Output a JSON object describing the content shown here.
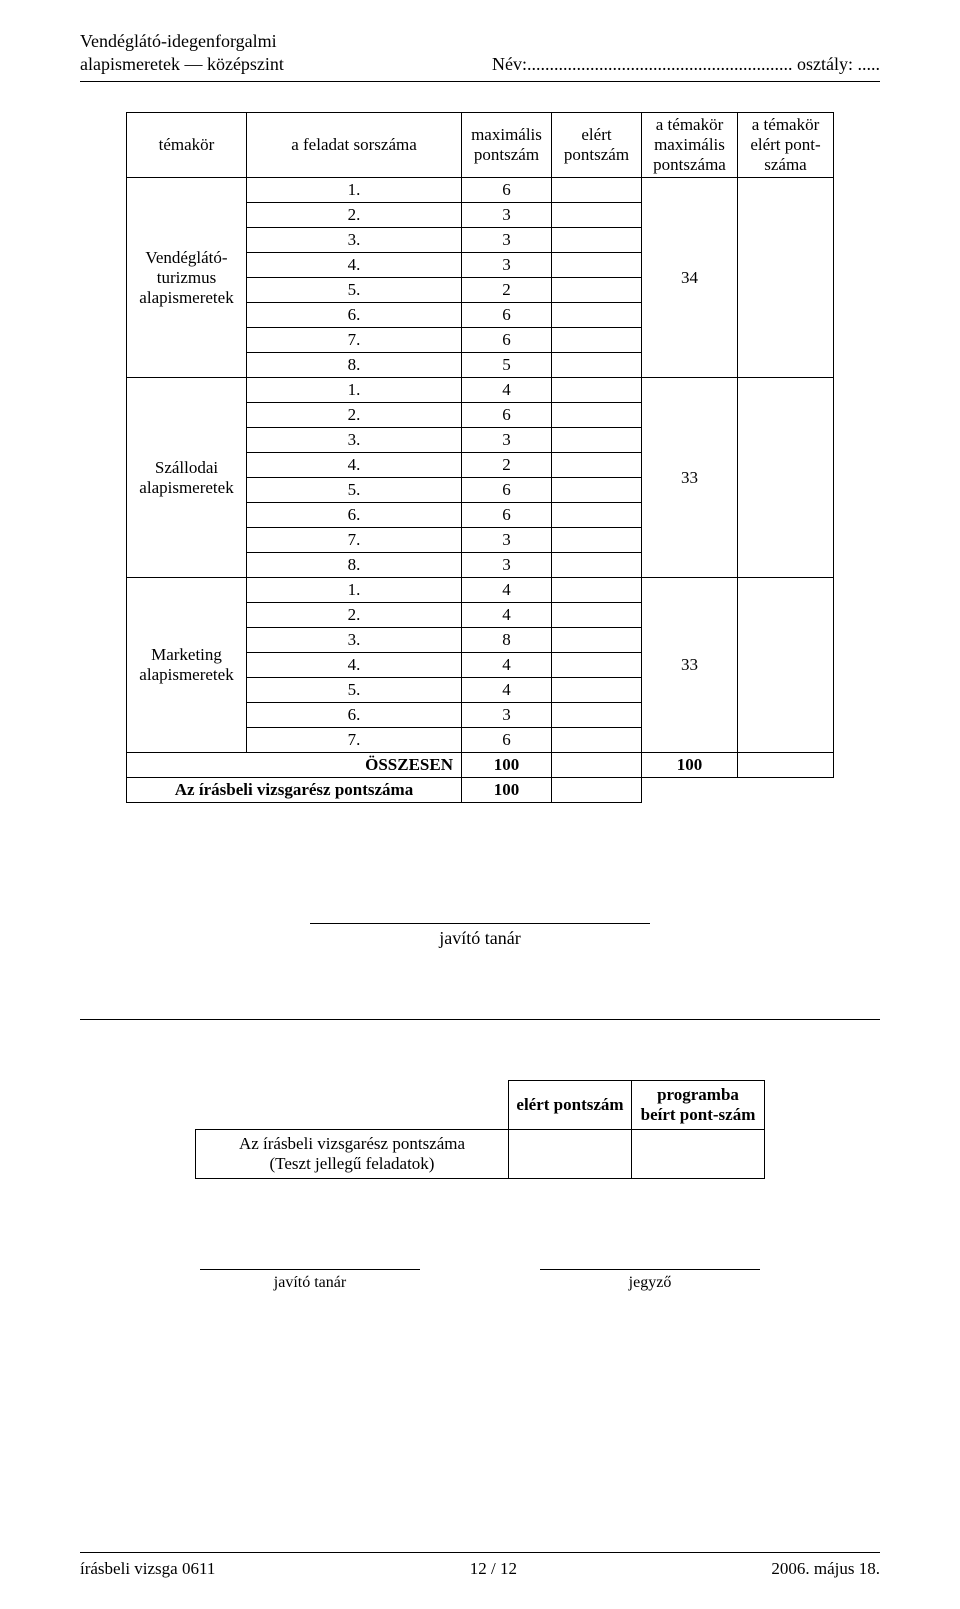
{
  "header": {
    "line1": "Vendéglátó-idegenforgalmi",
    "line2": "alapismeretek — középszint",
    "right": "Név:........................................................... osztály: ....."
  },
  "columns": {
    "topic": "témakör",
    "task": "a feladat sorszáma",
    "max": "maximális pontszám",
    "got": "elért pontszám",
    "tmax": "a témakör maximális pontszáma",
    "tgot": "a témakör elért pont-száma"
  },
  "groups": [
    {
      "name": "Vendéglátó-turizmus alapismeretek",
      "topic_total": "34",
      "rows": [
        {
          "n": "1.",
          "max": "6"
        },
        {
          "n": "2.",
          "max": "3"
        },
        {
          "n": "3.",
          "max": "3"
        },
        {
          "n": "4.",
          "max": "3"
        },
        {
          "n": "5.",
          "max": "2"
        },
        {
          "n": "6.",
          "max": "6"
        },
        {
          "n": "7.",
          "max": "6"
        },
        {
          "n": "8.",
          "max": "5"
        }
      ]
    },
    {
      "name": "Szállodai alapismeretek",
      "topic_total": "33",
      "rows": [
        {
          "n": "1.",
          "max": "4"
        },
        {
          "n": "2.",
          "max": "6"
        },
        {
          "n": "3.",
          "max": "3"
        },
        {
          "n": "4.",
          "max": "2"
        },
        {
          "n": "5.",
          "max": "6"
        },
        {
          "n": "6.",
          "max": "6"
        },
        {
          "n": "7.",
          "max": "3"
        },
        {
          "n": "8.",
          "max": "3"
        }
      ]
    },
    {
      "name": "Marketing alapismeretek",
      "topic_total": "33",
      "rows": [
        {
          "n": "1.",
          "max": "4"
        },
        {
          "n": "2.",
          "max": "4"
        },
        {
          "n": "3.",
          "max": "8"
        },
        {
          "n": "4.",
          "max": "4"
        },
        {
          "n": "5.",
          "max": "4"
        },
        {
          "n": "6.",
          "max": "3"
        },
        {
          "n": "7.",
          "max": "6"
        }
      ]
    }
  ],
  "totals": {
    "osszesen_label": "ÖSSZESEN",
    "osszesen_max": "100",
    "osszesen_topic": "100",
    "written_label": "Az írásbeli vizsgarész pontszáma",
    "written_max": "100"
  },
  "teacher": {
    "label": "javító tanár"
  },
  "bottom_table": {
    "col_e": "elért pontszám",
    "col_p": "programba beírt pont-szám",
    "row_label_1": "Az írásbeli vizsgarész pontszáma",
    "row_label_2": "(Teszt jellegű feladatok)"
  },
  "signatures": {
    "left": "javító tanár",
    "right": "jegyző"
  },
  "footer": {
    "left": "írásbeli vizsga 0611",
    "center": "12 / 12",
    "right": "2006. május 18."
  }
}
